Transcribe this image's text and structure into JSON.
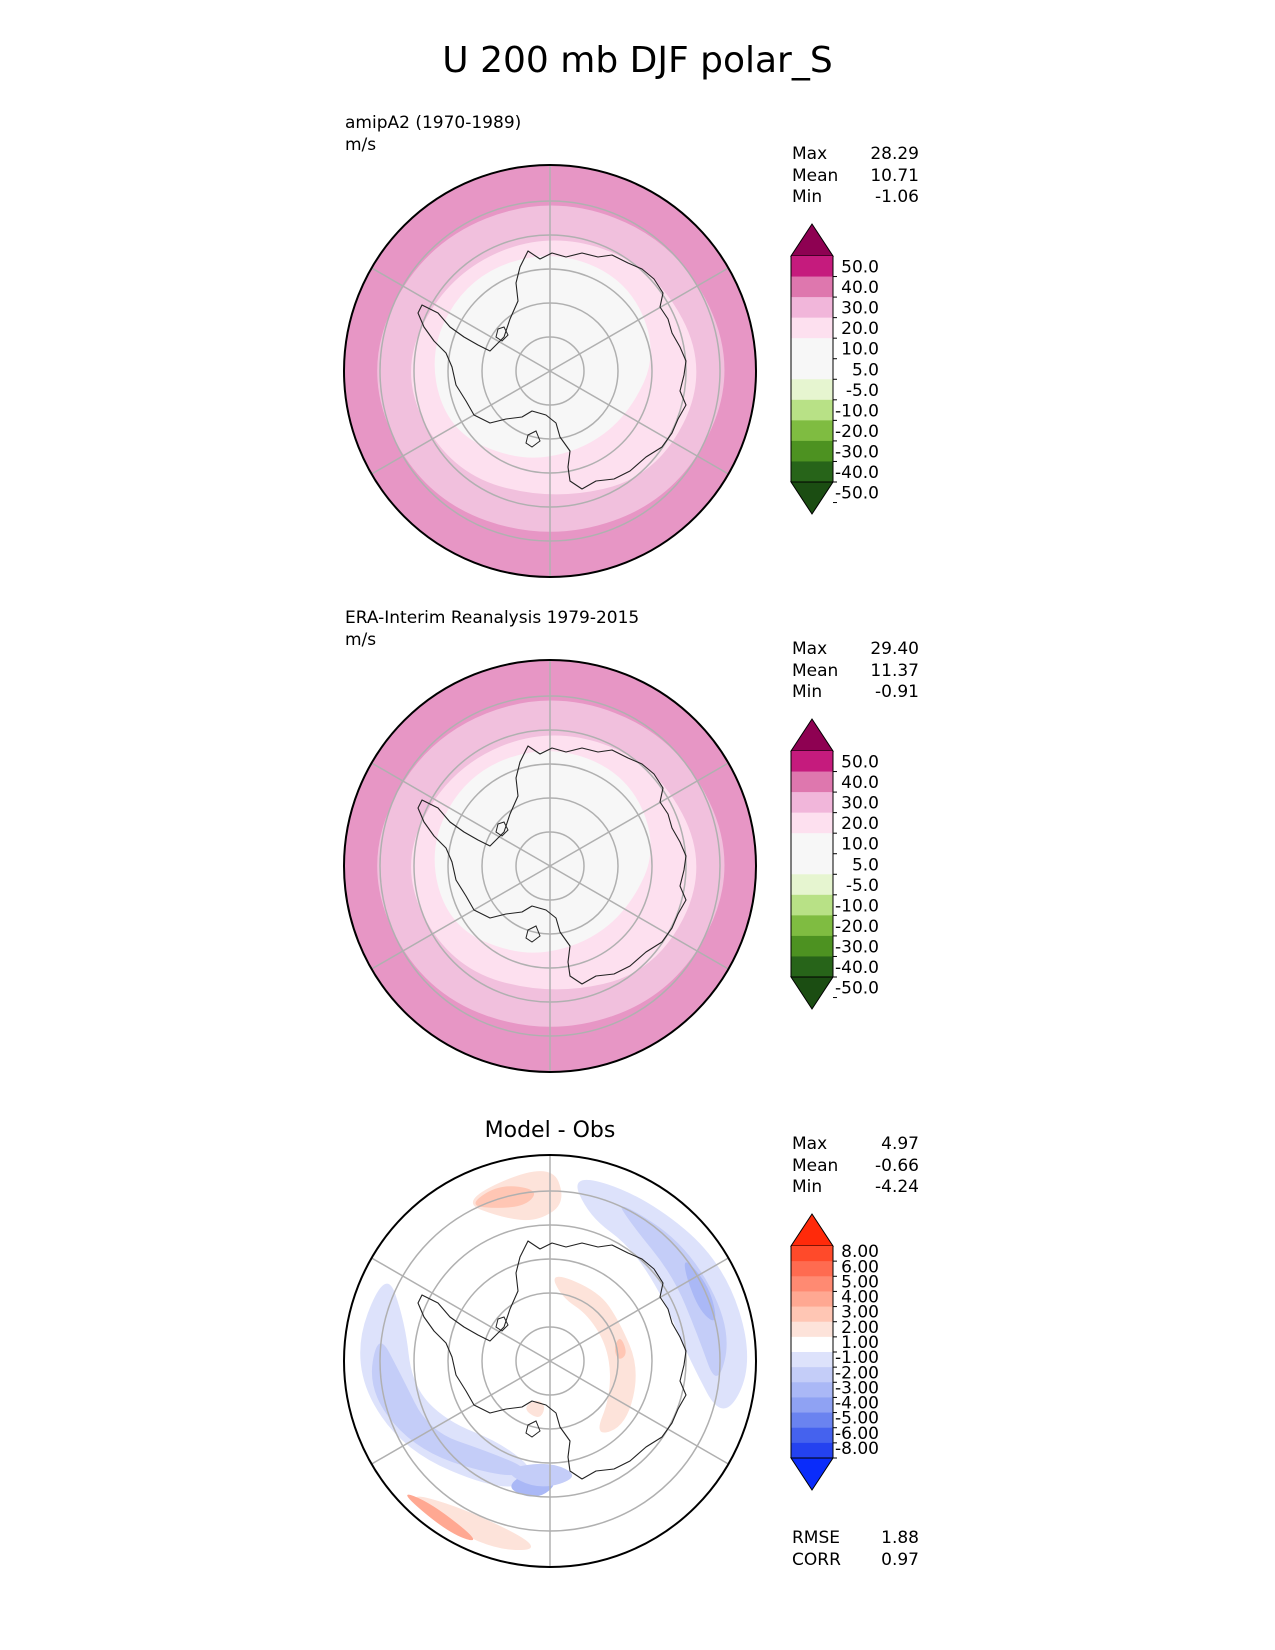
{
  "title": "U 200 mb DJF polar_S",
  "panels": [
    {
      "name": "test",
      "subtitle": "amipA2 (1970-1989)",
      "units": "m/s",
      "stats": [
        {
          "label": "Max",
          "value": "28.29"
        },
        {
          "label": "Mean",
          "value": "10.71"
        },
        {
          "label": "Min",
          "value": "-1.06"
        }
      ]
    },
    {
      "name": "reference",
      "subtitle": "ERA-Interim Reanalysis 1979-2015",
      "units": "m/s",
      "stats": [
        {
          "label": "Max",
          "value": "29.40"
        },
        {
          "label": "Mean",
          "value": "11.37"
        },
        {
          "label": "Min",
          "value": "-0.91"
        }
      ]
    },
    {
      "name": "difference",
      "subtitle": "Model - Obs",
      "stats": [
        {
          "label": "Max",
          "value": "4.97"
        },
        {
          "label": "Mean",
          "value": "-0.66"
        },
        {
          "label": "Min",
          "value": "-4.24"
        }
      ],
      "metrics": [
        {
          "label": "RMSE",
          "value": "1.88"
        },
        {
          "label": "CORR",
          "value": "0.97"
        }
      ]
    }
  ],
  "colorbars": {
    "field": {
      "ticks": [
        "50.0",
        "40.0",
        "30.0",
        "20.0",
        "10.0",
        "5.0",
        "-5.0",
        "-10.0",
        "-20.0",
        "-30.0",
        "-40.0",
        "-50.0"
      ],
      "colors": [
        "#8e0152",
        "#c51b7d",
        "#de77ae",
        "#f1b6da",
        "#fde0ef",
        "#f7f7f7",
        "#f7f7f7",
        "#e6f5d0",
        "#b8e186",
        "#7fbc41",
        "#4d9221",
        "#276419",
        "#1b4d12"
      ]
    },
    "diff": {
      "ticks": [
        "8.00",
        "6.00",
        "5.00",
        "4.00",
        "3.00",
        "2.00",
        "1.00",
        "-1.00",
        "-2.00",
        "-3.00",
        "-4.00",
        "-5.00",
        "-6.00",
        "-8.00"
      ],
      "colors": [
        "#ff2a0a",
        "#ff4a2a",
        "#ff6b50",
        "#ff8a72",
        "#ffa892",
        "#ffc6b4",
        "#fde3da",
        "#ffffff",
        "#dde2fb",
        "#c4cdf8",
        "#aab8f6",
        "#8fa2f3",
        "#6a83f0",
        "#4562ee",
        "#2442f0",
        "#0a2cfa"
      ]
    }
  },
  "map_colors": {
    "field_bands": [
      "#f7f7f7",
      "#fde0ef",
      "#f1c0dd",
      "#e796c5"
    ],
    "diff_pos": [
      "#fde3da",
      "#ffc6b4",
      "#ffa892",
      "#ff8a72"
    ],
    "diff_neg": [
      "#dde2fb",
      "#c4cdf8",
      "#aab8f6",
      "#8fa2f3"
    ],
    "grid": "#b0b0b0",
    "coast": "#222222"
  }
}
